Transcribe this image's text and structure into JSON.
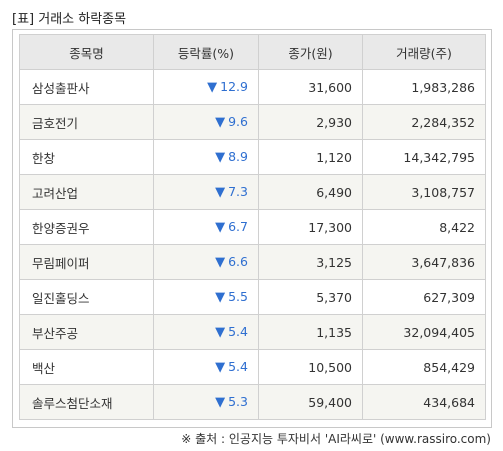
{
  "title": "[표] 거래소 하락종목",
  "table": {
    "headers": [
      "종목명",
      "등락률(%)",
      "종가(원)",
      "거래량(주)"
    ],
    "rows": [
      {
        "name": "삼성출판사",
        "arrow": "▼",
        "rate": "12.9",
        "price": "31,600",
        "volume": "1,983,286"
      },
      {
        "name": "금호전기",
        "arrow": "▼",
        "rate": "9.6",
        "price": "2,930",
        "volume": "2,284,352"
      },
      {
        "name": "한창",
        "arrow": "▼",
        "rate": "8.9",
        "price": "1,120",
        "volume": "14,342,795"
      },
      {
        "name": "고려산업",
        "arrow": "▼",
        "rate": "7.3",
        "price": "6,490",
        "volume": "3,108,757"
      },
      {
        "name": "한양증권우",
        "arrow": "▼",
        "rate": "6.7",
        "price": "17,300",
        "volume": "8,422"
      },
      {
        "name": "무림페이퍼",
        "arrow": "▼",
        "rate": "6.6",
        "price": "3,125",
        "volume": "3,647,836"
      },
      {
        "name": "일진홀딩스",
        "arrow": "▼",
        "rate": "5.5",
        "price": "5,370",
        "volume": "627,309"
      },
      {
        "name": "부산주공",
        "arrow": "▼",
        "rate": "5.4",
        "price": "1,135",
        "volume": "32,094,405"
      },
      {
        "name": "백산",
        "arrow": "▼",
        "rate": "5.4",
        "price": "10,500",
        "volume": "854,429"
      },
      {
        "name": "솔루스첨단소재",
        "arrow": "▼",
        "rate": "5.3",
        "price": "59,400",
        "volume": "434,684"
      }
    ]
  },
  "source": "※ 출처 : 인공지능 투자비서 'AI라씨로' (www.rassiro.com)",
  "colors": {
    "down": "#2f6fd0",
    "header_bg": "#e9e9e9",
    "alt_row_bg": "#f5f5f1"
  }
}
